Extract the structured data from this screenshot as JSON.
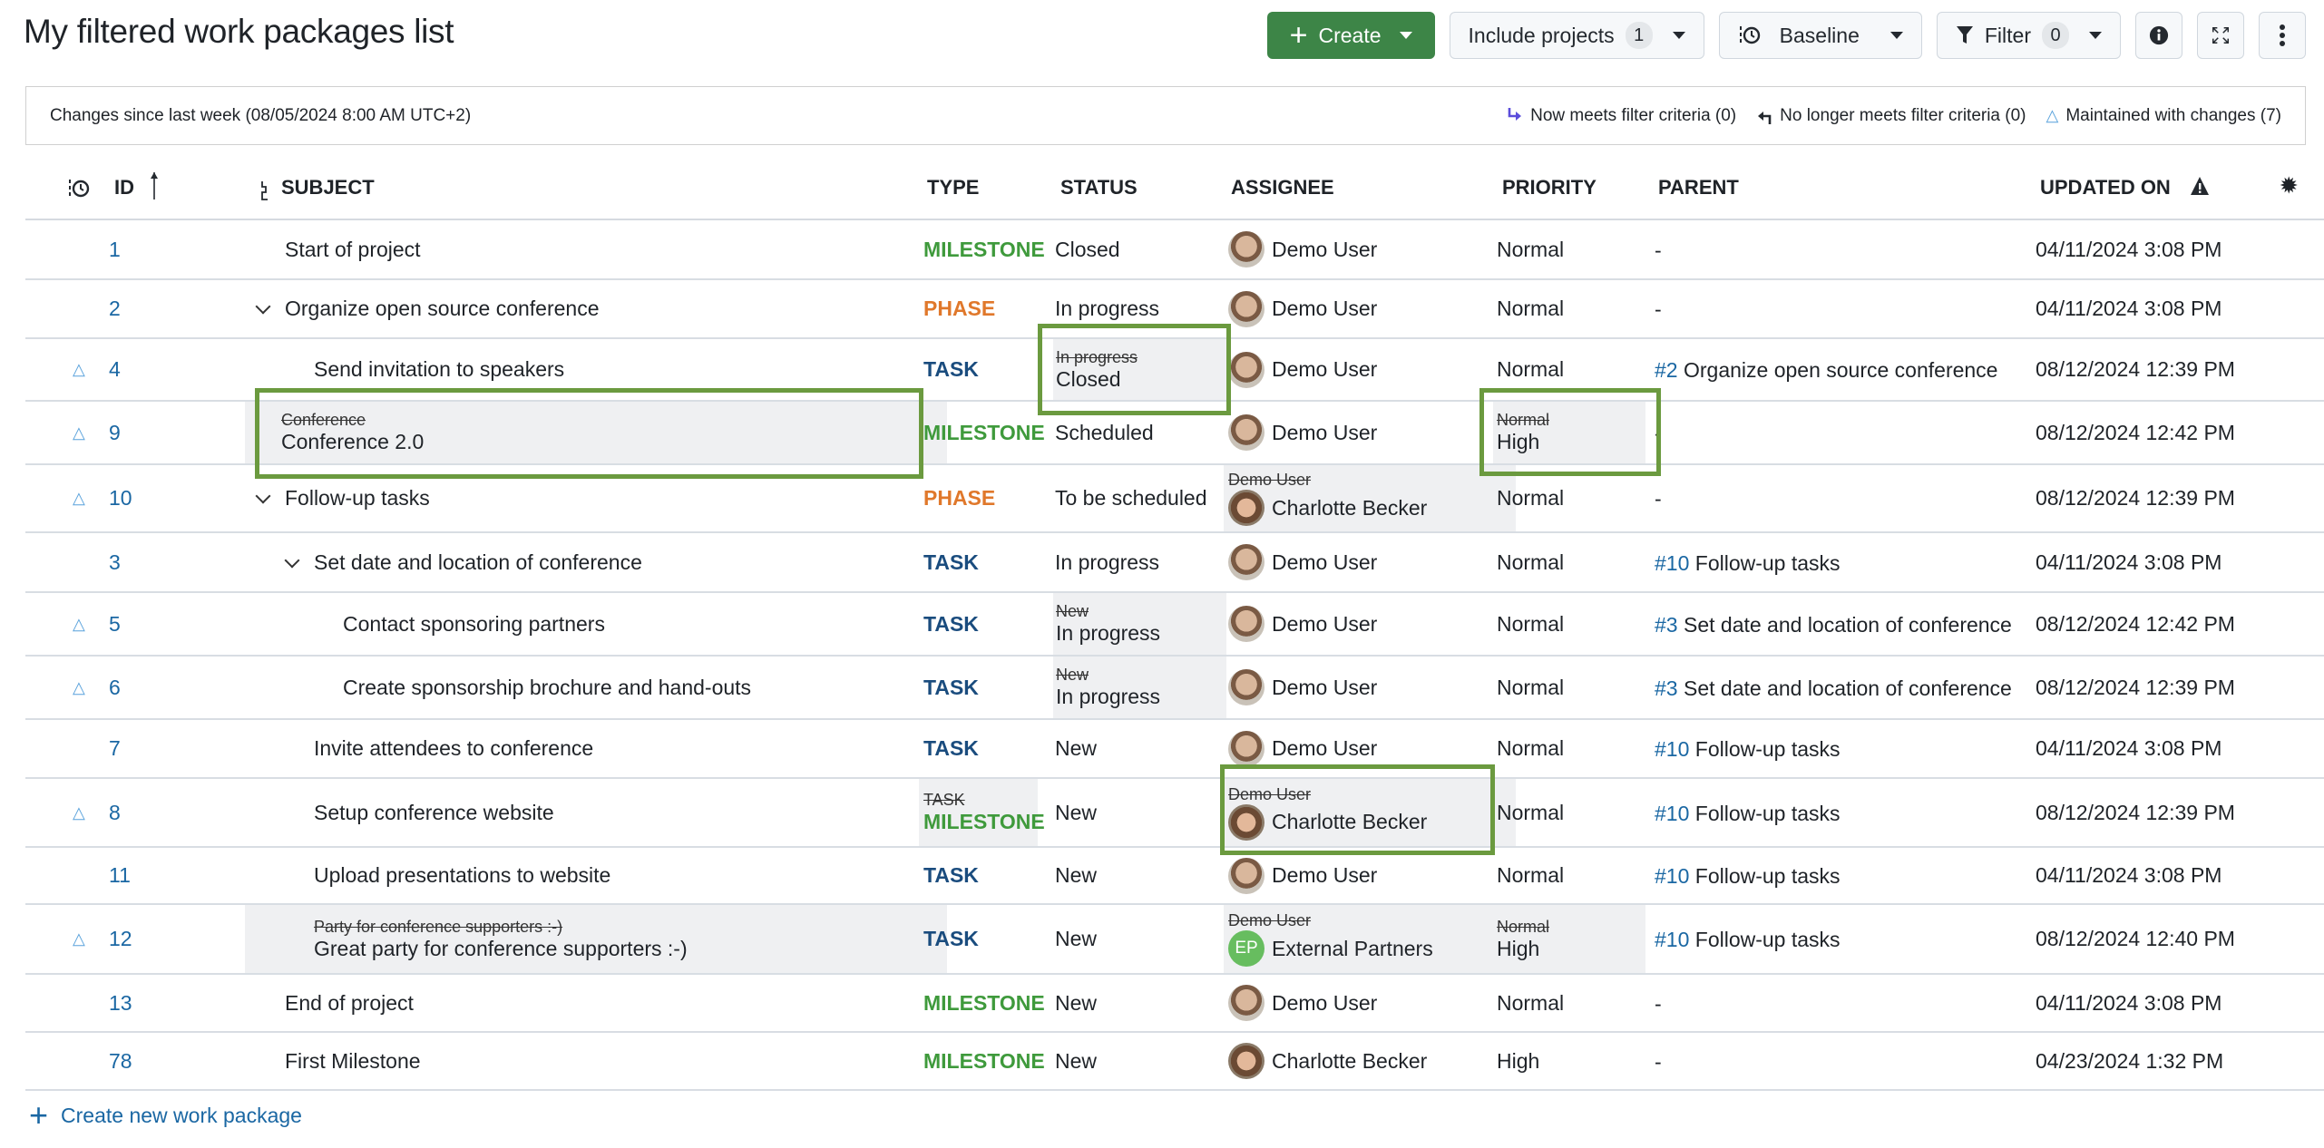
{
  "page": {
    "title": "My filtered work packages list"
  },
  "toolbar": {
    "create_label": "Create",
    "include_projects_label": "Include projects",
    "include_projects_count": "1",
    "baseline_label": "Baseline",
    "filter_label": "Filter",
    "filter_count": "0"
  },
  "banner": {
    "text": "Changes since last week (08/05/2024 8:00 AM UTC+2)",
    "now_meets": "Now meets filter criteria (0)",
    "no_longer_meets": "No longer meets filter criteria (0)",
    "maintained": "Maintained with changes (7)"
  },
  "columns": {
    "id": "ID",
    "subject": "SUBJECT",
    "type": "TYPE",
    "status": "STATUS",
    "assignee": "ASSIGNEE",
    "priority": "PRIORITY",
    "parent": "PARENT",
    "updated_on": "UPDATED ON"
  },
  "rows": [
    {
      "changed": false,
      "id": "1",
      "indent": 0,
      "expander": false,
      "subject": "Start of project",
      "type": "MILESTONE",
      "status": "Closed",
      "assignee": "Demo User",
      "avatar": "demo",
      "priority": "Normal",
      "parent_ref": "",
      "parent": "-",
      "updated": "04/11/2024 3:08 PM"
    },
    {
      "changed": false,
      "id": "2",
      "indent": 0,
      "expander": true,
      "subject": "Organize open source conference",
      "type": "PHASE",
      "status": "In progress",
      "assignee": "Demo User",
      "avatar": "demo",
      "priority": "Normal",
      "parent_ref": "",
      "parent": "-",
      "updated": "04/11/2024 3:08 PM"
    },
    {
      "changed": true,
      "id": "4",
      "indent": 1,
      "expander": false,
      "subject": "Send invitation to speakers",
      "type": "TASK",
      "status_old": "In progress",
      "status": "Closed",
      "assignee": "Demo User",
      "avatar": "demo",
      "priority": "Normal",
      "parent_ref": "#2",
      "parent": "Organize open source conference",
      "updated": "08/12/2024 12:39 PM"
    },
    {
      "changed": true,
      "id": "9",
      "indent": 0,
      "expander": false,
      "subject_old": "Conference",
      "subject": "Conference 2.0",
      "type": "MILESTONE",
      "status": "Scheduled",
      "assignee": "Demo User",
      "avatar": "demo",
      "priority_old": "Normal",
      "priority": "High",
      "parent_ref": "",
      "parent": "-",
      "updated": "08/12/2024 12:42 PM"
    },
    {
      "changed": true,
      "id": "10",
      "indent": 0,
      "expander": true,
      "subject": "Follow-up tasks",
      "type": "PHASE",
      "status": "To be scheduled",
      "assignee_old": "Demo User",
      "assignee": "Charlotte Becker",
      "avatar": "charlotte",
      "priority": "Normal",
      "parent_ref": "",
      "parent": "-",
      "updated": "08/12/2024 12:39 PM"
    },
    {
      "changed": false,
      "id": "3",
      "indent": 1,
      "expander": true,
      "subject": "Set date and location of conference",
      "type": "TASK",
      "status": "In progress",
      "assignee": "Demo User",
      "avatar": "demo",
      "priority": "Normal",
      "parent_ref": "#10",
      "parent": "Follow-up tasks",
      "updated": "04/11/2024 3:08 PM"
    },
    {
      "changed": true,
      "id": "5",
      "indent": 2,
      "expander": false,
      "subject": "Contact sponsoring partners",
      "type": "TASK",
      "status_old": "New",
      "status": "In progress",
      "assignee": "Demo User",
      "avatar": "demo",
      "priority": "Normal",
      "parent_ref": "#3",
      "parent": "Set date and location of conference",
      "updated": "08/12/2024 12:42 PM"
    },
    {
      "changed": true,
      "id": "6",
      "indent": 2,
      "expander": false,
      "subject": "Create sponsorship brochure and hand-outs",
      "type": "TASK",
      "status_old": "New",
      "status": "In progress",
      "assignee": "Demo User",
      "avatar": "demo",
      "priority": "Normal",
      "parent_ref": "#3",
      "parent": "Set date and location of conference",
      "updated": "08/12/2024 12:39 PM"
    },
    {
      "changed": false,
      "id": "7",
      "indent": 1,
      "expander": false,
      "subject": "Invite attendees to conference",
      "type": "TASK",
      "status": "New",
      "assignee": "Demo User",
      "avatar": "demo",
      "priority": "Normal",
      "parent_ref": "#10",
      "parent": "Follow-up tasks",
      "updated": "04/11/2024 3:08 PM"
    },
    {
      "changed": true,
      "id": "8",
      "indent": 1,
      "expander": false,
      "subject": "Setup conference website",
      "type_old": "TASK",
      "type": "MILESTONE",
      "status": "New",
      "assignee_old": "Demo User",
      "assignee": "Charlotte Becker",
      "avatar": "charlotte",
      "priority": "Normal",
      "parent_ref": "#10",
      "parent": "Follow-up tasks",
      "updated": "08/12/2024 12:39 PM"
    },
    {
      "changed": false,
      "id": "11",
      "indent": 1,
      "expander": false,
      "subject": "Upload presentations to website",
      "type": "TASK",
      "status": "New",
      "assignee": "Demo User",
      "avatar": "demo",
      "priority": "Normal",
      "parent_ref": "#10",
      "parent": "Follow-up tasks",
      "updated": "04/11/2024 3:08 PM"
    },
    {
      "changed": true,
      "id": "12",
      "indent": 1,
      "expander": false,
      "subject_old": "Party for conference supporters :-)",
      "subject": "Great party for conference supporters :-)",
      "type": "TASK",
      "status": "New",
      "assignee_old": "Demo User",
      "assignee": "External Partners",
      "avatar": "ep",
      "avatar_initials": "EP",
      "priority_old": "Normal",
      "priority": "High",
      "parent_ref": "#10",
      "parent": "Follow-up tasks",
      "updated": "08/12/2024 12:40 PM"
    },
    {
      "changed": false,
      "id": "13",
      "indent": 0,
      "expander": false,
      "subject": "End of project",
      "type": "MILESTONE",
      "status": "New",
      "assignee": "Demo User",
      "avatar": "demo",
      "priority": "Normal",
      "parent_ref": "",
      "parent": "-",
      "updated": "04/11/2024 3:08 PM"
    },
    {
      "changed": false,
      "id": "78",
      "indent": 0,
      "expander": false,
      "subject": "First Milestone",
      "type": "MILESTONE",
      "status": "New",
      "assignee": "Charlotte Becker",
      "avatar": "charlotte",
      "priority": "High",
      "parent_ref": "",
      "parent": "-",
      "updated": "04/23/2024 1:32 PM"
    }
  ],
  "footer": {
    "create_new": "Create new work package"
  },
  "colors": {
    "primary": "#3d8547",
    "link": "#1a67a3",
    "milestone": "#3f9a3c",
    "phase": "#e0782b",
    "task": "#1a4c7e",
    "highlight_border": "#6b9a3f",
    "changed_bg": "#eff0f2"
  }
}
